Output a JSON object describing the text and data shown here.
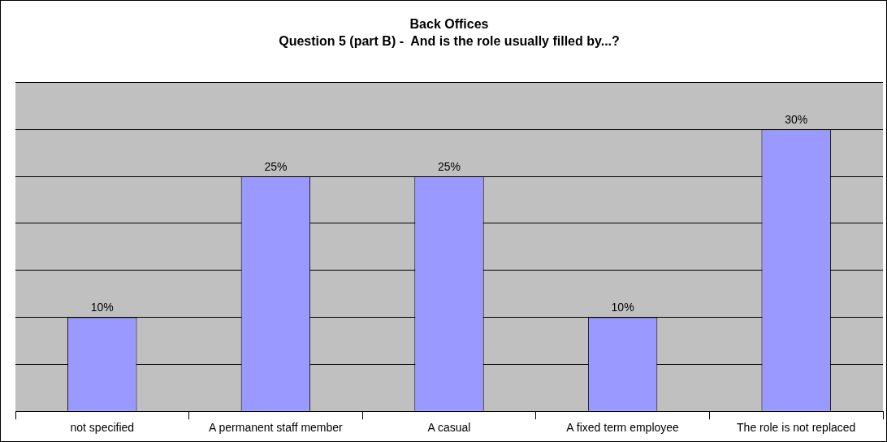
{
  "chart_data": {
    "type": "bar",
    "title": "Back Offices",
    "subtitle": "Question 5 (part B) -  And is the role usually filled by...?",
    "categories": [
      "not specified",
      "A permanent staff member",
      "A casual",
      "A fixed term employee",
      "The role is not replaced"
    ],
    "values": [
      10,
      25,
      25,
      10,
      30
    ],
    "color": "#9999ff",
    "value_labels": [
      "10%",
      "25%",
      "25%",
      "10%",
      "30%"
    ],
    "ylim": [
      0,
      35
    ],
    "yticks": [
      {
        "value": 0,
        "label": null
      },
      {
        "value": 5,
        "label": null
      },
      {
        "value": 10,
        "label": null
      },
      {
        "value": 15,
        "label": null
      },
      {
        "value": 20,
        "label": null
      },
      {
        "value": 25,
        "label": null
      },
      {
        "value": 30,
        "label": null
      },
      {
        "value": 35,
        "label": null
      }
    ],
    "tick_labels": "x",
    "grid": "y",
    "legend": false
  }
}
